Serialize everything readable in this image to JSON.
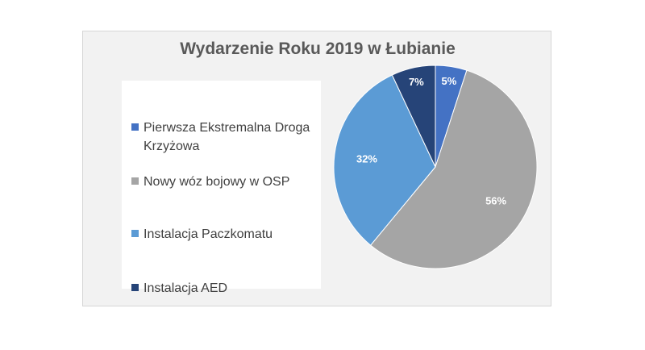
{
  "chart_data": {
    "type": "pie",
    "title": "Wydarzenie Roku 2019 w Łubianie",
    "categories": [
      "Pierwsza Ekstremalna Droga Krzyżowa",
      "Nowy wóz bojowy w OSP",
      "Instalacja Paczkomatu",
      "Instalacja AED"
    ],
    "values": [
      5,
      56,
      32,
      7
    ],
    "data_labels": [
      "5%",
      "56%",
      "32%",
      "7%"
    ],
    "colors": [
      "#4472c4",
      "#a5a5a5",
      "#5b9bd5",
      "#264478"
    ],
    "legend_position": "left",
    "start_angle": "top, clockwise"
  }
}
